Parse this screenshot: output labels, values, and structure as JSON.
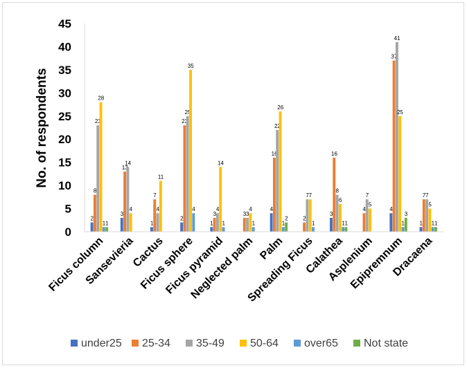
{
  "chart_data": {
    "type": "bar",
    "title": "",
    "xlabel": "",
    "ylabel": "No. of respondents",
    "ylim": [
      0,
      45
    ],
    "yticks": [
      0,
      5,
      10,
      15,
      20,
      25,
      30,
      35,
      40,
      45
    ],
    "grid": false,
    "legend_position": "bottom",
    "categories": [
      "Ficus column",
      "Sansevieria",
      "Cactus",
      "Ficus sphere",
      "Ficus pyramid",
      "Neglected palm",
      "Palm",
      "Spreading Ficus",
      "Calathea",
      "Asplenium",
      "Epipremnum",
      "Dracaena"
    ],
    "series": [
      {
        "name": "under25",
        "color": "#4472c4",
        "values": [
          2,
          3,
          1,
          2,
          1,
          0,
          4,
          0,
          3,
          0,
          4,
          1
        ]
      },
      {
        "name": "25-34",
        "color": "#ed7d31",
        "values": [
          8,
          13,
          7,
          23,
          3,
          3,
          16,
          2,
          16,
          4,
          37,
          7
        ]
      },
      {
        "name": "35-49",
        "color": "#a5a5a5",
        "values": [
          23,
          14,
          4,
          25,
          4,
          3,
          22,
          7,
          8,
          7,
          41,
          7
        ]
      },
      {
        "name": "50-64",
        "color": "#ffc000",
        "values": [
          28,
          4,
          11,
          35,
          14,
          4,
          26,
          7,
          6,
          5,
          25,
          5
        ]
      },
      {
        "name": "over65",
        "color": "#5b9bd5",
        "values": [
          1,
          0,
          0,
          4,
          1,
          1,
          1,
          1,
          1,
          0,
          1,
          1
        ]
      },
      {
        "name": "Not state",
        "color": "#70ad47",
        "values": [
          1,
          0,
          0,
          0,
          0,
          0,
          2,
          0,
          1,
          0,
          3,
          1
        ]
      }
    ]
  }
}
